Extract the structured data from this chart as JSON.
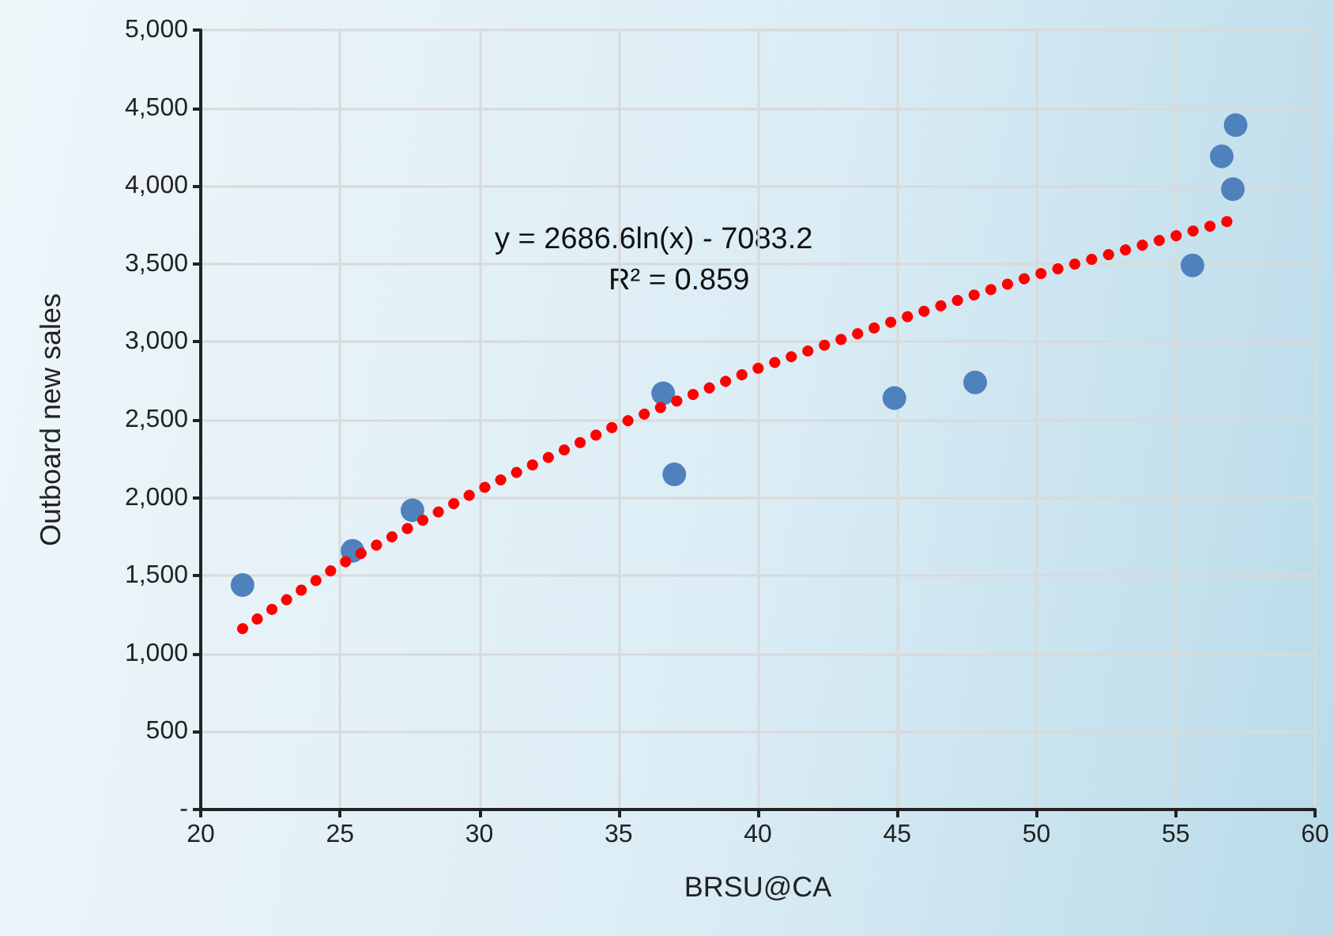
{
  "chart_data": {
    "type": "scatter",
    "xlabel": "BRSU@CA",
    "ylabel": "Outboard new sales",
    "annotations": [
      "y = 2686.6ln(x) - 7083.2",
      "R² = 0.859"
    ],
    "xlim": [
      20,
      60
    ],
    "xticks": [
      20,
      25,
      30,
      35,
      40,
      45,
      50,
      55,
      60
    ],
    "ylim": [
      0,
      5000
    ],
    "yticks": [
      {
        "value": 0,
        "label": "-"
      },
      {
        "value": 500,
        "label": "500"
      },
      {
        "value": 1000,
        "label": "1,000"
      },
      {
        "value": 1500,
        "label": "1,500"
      },
      {
        "value": 2000,
        "label": "2,000"
      },
      {
        "value": 2500,
        "label": "2,500"
      },
      {
        "value": 3000,
        "label": "3,000"
      },
      {
        "value": 3500,
        "label": "3,500"
      },
      {
        "value": 4000,
        "label": "4,000"
      },
      {
        "value": 4500,
        "label": "4,500"
      },
      {
        "value": 5000,
        "label": "5,000"
      }
    ],
    "grid": true,
    "marker": "circle",
    "series": [
      {
        "color": "#4f81bd",
        "x": [
          21.5,
          25.45,
          27.6,
          36.6,
          37.0,
          44.9,
          47.8,
          55.6,
          57.05,
          56.65,
          57.15
        ],
        "values": [
          1440,
          1660,
          1920,
          2670,
          2150,
          2640,
          2740,
          3490,
          3980,
          4190,
          4390
        ]
      },
      {
        "type": "line",
        "color": "#ff0000",
        "line_style": "dotted",
        "marker": "none",
        "x": [
          21.5,
          25,
          30,
          35,
          40,
          45,
          50,
          55,
          57.2
        ],
        "values": [
          1160,
          1570,
          2050,
          2470,
          2830,
          3140,
          3430,
          3680,
          3790
        ]
      }
    ]
  }
}
